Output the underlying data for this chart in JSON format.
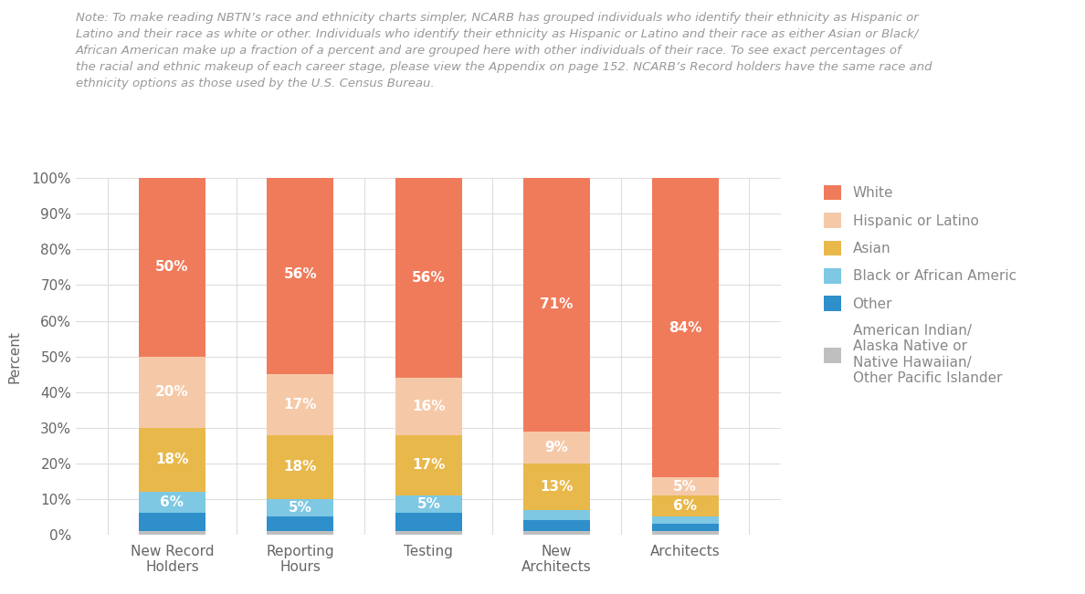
{
  "categories": [
    "New Record\nHolders",
    "Reporting\nHours",
    "Testing",
    "New\nArchitects",
    "Architects"
  ],
  "segments": {
    "American Indian": {
      "values": [
        1,
        1,
        1,
        1,
        1
      ],
      "color": "#c0bfbf",
      "label": "American Indian/\nAlaska Native or\nNative Hawaiian/\nOther Pacific Islander"
    },
    "Other": {
      "values": [
        5,
        4,
        5,
        3,
        2
      ],
      "color": "#2e8fcb",
      "label": "Other"
    },
    "Black": {
      "values": [
        6,
        5,
        5,
        3,
        2
      ],
      "color": "#7ec8e3",
      "label": "Black or African Americ"
    },
    "Asian": {
      "values": [
        18,
        18,
        17,
        13,
        6
      ],
      "color": "#e8b84b",
      "label": "Asian"
    },
    "Hispanic": {
      "values": [
        20,
        17,
        16,
        9,
        5
      ],
      "color": "#f5c9a8",
      "label": "Hispanic or Latino"
    },
    "White": {
      "values": [
        50,
        56,
        56,
        71,
        84
      ],
      "color": "#f07b5b",
      "label": "White"
    }
  },
  "bar_labels": {
    "White": [
      "50%",
      "56%",
      "56%",
      "71%",
      "84%"
    ],
    "Hispanic": [
      "20%",
      "17%",
      "16%",
      "9%",
      "5%"
    ],
    "Asian": [
      "18%",
      "18%",
      "17%",
      "13%",
      "6%"
    ],
    "Black": [
      "6%",
      "5%",
      "5%",
      "",
      ""
    ],
    "Other": [
      "",
      "",
      "",
      "",
      ""
    ],
    "American Indian": [
      "",
      "",
      "",
      "",
      ""
    ]
  },
  "ylabel": "Percent",
  "ylim": [
    0,
    100
  ],
  "yticks": [
    0,
    10,
    20,
    30,
    40,
    50,
    60,
    70,
    80,
    90,
    100
  ],
  "note": "Note: To make reading NBTN’s race and ethnicity charts simpler, NCARB has grouped individuals who identify their ethnicity as Hispanic or\nLatino and their race as white or other. Individuals who identify their ethnicity as Hispanic or Latino and their race as either Asian or Black/\nAfrican American make up a fraction of a percent and are grouped here with other individuals of their race. To see exact percentages of\nthe racial and ethnic makeup of each career stage, please view the Appendix on page 152. NCARB’s Record holders have the same race and\nethnicity options as those used by the U.S. Census Bureau.",
  "background_color": "#ffffff",
  "bar_width": 0.52,
  "label_fontsize": 11,
  "legend_fontsize": 11,
  "axis_fontsize": 11,
  "note_fontsize": 9.5
}
